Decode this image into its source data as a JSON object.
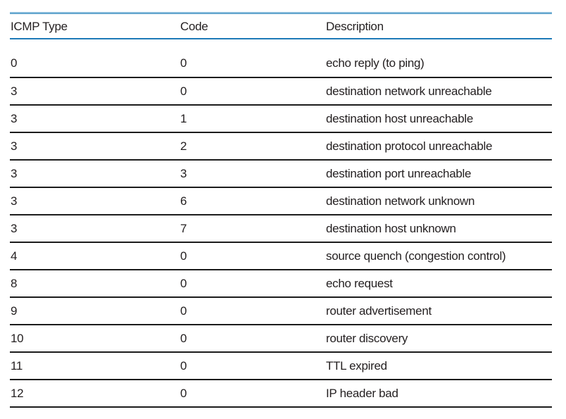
{
  "table": {
    "columns": [
      {
        "key": "type",
        "label": "ICMP Type"
      },
      {
        "key": "code",
        "label": "Code"
      },
      {
        "key": "description",
        "label": "Description"
      }
    ],
    "rows": [
      {
        "type": "0",
        "code": "0",
        "description": "echo reply (to ping)"
      },
      {
        "type": "3",
        "code": "0",
        "description": "destination network unreachable"
      },
      {
        "type": "3",
        "code": "1",
        "description": "destination host unreachable"
      },
      {
        "type": "3",
        "code": "2",
        "description": "destination protocol unreachable"
      },
      {
        "type": "3",
        "code": "3",
        "description": "destination port unreachable"
      },
      {
        "type": "3",
        "code": "6",
        "description": "destination network unknown"
      },
      {
        "type": "3",
        "code": "7",
        "description": "destination host unknown"
      },
      {
        "type": "4",
        "code": "0",
        "description": "source quench (congestion control)"
      },
      {
        "type": "8",
        "code": "0",
        "description": "echo request"
      },
      {
        "type": "9",
        "code": "0",
        "description": "router advertisement"
      },
      {
        "type": "10",
        "code": "0",
        "description": "router discovery"
      },
      {
        "type": "11",
        "code": "0",
        "description": "TTL expired"
      },
      {
        "type": "12",
        "code": "0",
        "description": "IP header bad"
      }
    ]
  },
  "colors": {
    "top_rule_light": "#9cc8e2",
    "top_rule_dark": "#4b97c6",
    "header_rule": "#1f7ab8",
    "row_rule": "#1c1c1c",
    "text": "#231f20"
  }
}
